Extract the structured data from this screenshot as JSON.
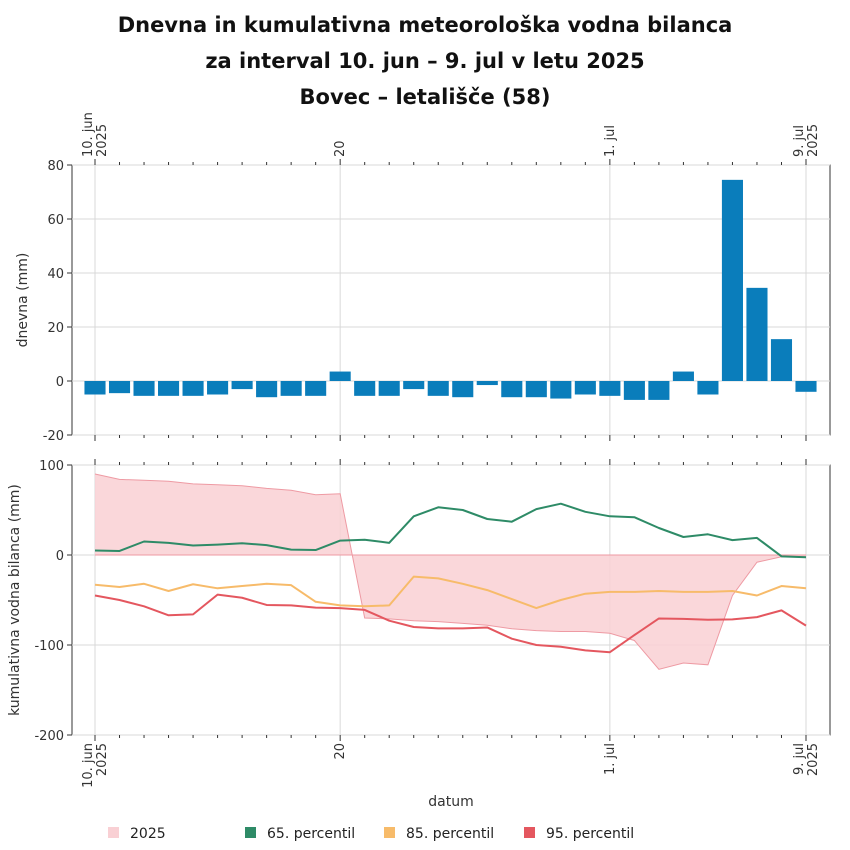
{
  "title_lines": [
    "Dnevna in kumulativna meteorološka vodna bilanca",
    "za interval 10. jun – 9. jul v letu 2025",
    "Bovec – letališče (58)"
  ],
  "colors": {
    "bar": "#0a7dbb",
    "area_fill": "#f9d0d4",
    "area_line": "#ee9aa3",
    "p65": "#2e8b67",
    "p85": "#f7bb6a",
    "p95": "#e4575f",
    "grid": "#d9d9d9"
  },
  "x_ticks": [
    {
      "day": 0,
      "lines": [
        "10. jun",
        "2025"
      ]
    },
    {
      "day": 10,
      "lines": [
        "20"
      ]
    },
    {
      "day": 21,
      "lines": [
        "1. jul"
      ]
    },
    {
      "day": 29,
      "lines": [
        "9. jul",
        "2025"
      ]
    }
  ],
  "xlabel": "datum",
  "legend": [
    "2025",
    "65. percentil",
    "85. percentil",
    "95. percentil"
  ],
  "chart_data": [
    {
      "type": "bar",
      "ylabel": "dnevna (mm)",
      "ylim": [
        -20,
        80
      ],
      "yticks": [
        -20,
        0,
        20,
        40,
        60,
        80
      ],
      "x_dates": [
        "2025-06-10",
        "2025-06-11",
        "2025-06-12",
        "2025-06-13",
        "2025-06-14",
        "2025-06-15",
        "2025-06-16",
        "2025-06-17",
        "2025-06-18",
        "2025-06-19",
        "2025-06-20",
        "2025-06-21",
        "2025-06-22",
        "2025-06-23",
        "2025-06-24",
        "2025-06-25",
        "2025-06-26",
        "2025-06-27",
        "2025-06-28",
        "2025-06-29",
        "2025-06-30",
        "2025-07-01",
        "2025-07-02",
        "2025-07-03",
        "2025-07-04",
        "2025-07-05",
        "2025-07-06",
        "2025-07-07",
        "2025-07-08",
        "2025-07-09"
      ],
      "values": [
        -5,
        -4.5,
        -5.5,
        -5.5,
        -5.5,
        -5,
        -3,
        -6,
        -5.5,
        -5.5,
        3.5,
        -5.5,
        -5.5,
        -3,
        -5.5,
        -6,
        -1.5,
        -6,
        -6,
        -6.5,
        -5,
        -5.5,
        -7,
        -7,
        3.5,
        -5,
        74.5,
        34.5,
        15.5,
        -4
      ]
    },
    {
      "type": "line",
      "ylabel": "kumulativna vodna bilanca (mm)",
      "ylim": [
        -200,
        100
      ],
      "yticks": [
        -200,
        -100,
        0,
        100
      ],
      "x_dates": [
        "2025-06-10",
        "2025-06-11",
        "2025-06-12",
        "2025-06-13",
        "2025-06-14",
        "2025-06-15",
        "2025-06-16",
        "2025-06-17",
        "2025-06-18",
        "2025-06-19",
        "2025-06-20",
        "2025-06-21",
        "2025-06-22",
        "2025-06-23",
        "2025-06-24",
        "2025-06-25",
        "2025-06-26",
        "2025-06-27",
        "2025-06-28",
        "2025-06-29",
        "2025-06-30",
        "2025-07-01",
        "2025-07-02",
        "2025-07-03",
        "2025-07-04",
        "2025-07-05",
        "2025-07-06",
        "2025-07-07",
        "2025-07-08",
        "2025-07-09"
      ],
      "series": [
        {
          "name": "2025",
          "kind": "area",
          "values": [
            90,
            84,
            83,
            82,
            79,
            78,
            77,
            74,
            72,
            67,
            68,
            -70,
            -71,
            -73,
            -74,
            -76,
            -78,
            -82,
            -84,
            -85,
            -85,
            -87,
            -95,
            -127,
            -120,
            -122,
            -45,
            -8,
            -2,
            -2
          ]
        },
        {
          "name": "65. percentil",
          "values": [
            5,
            4.5,
            15,
            13.5,
            10.5,
            11.5,
            13,
            11,
            6,
            5.5,
            16,
            17,
            13.5,
            43,
            53,
            50,
            40,
            37,
            51,
            57,
            48,
            43,
            42,
            30,
            20,
            23,
            16.5,
            19,
            -1.5,
            -2.5
          ]
        },
        {
          "name": "85. percentil",
          "values": [
            -33,
            -35.5,
            -32,
            -40,
            -32.5,
            -37,
            -34.5,
            -32,
            -33.5,
            -52,
            -56,
            -57,
            -56,
            -24,
            -26,
            -32,
            -39,
            -49,
            -59,
            -50,
            -43,
            -41,
            -41,
            -40,
            -41,
            -41,
            -40,
            -45,
            -34.5,
            -37
          ]
        },
        {
          "name": "95. percentil",
          "values": [
            -45,
            -50,
            -57,
            -67,
            -66,
            -44,
            -47.5,
            -55.5,
            -56,
            -58.5,
            -59,
            -61,
            -73,
            -80,
            -81.5,
            -81.5,
            -80.5,
            -93,
            -100,
            -102,
            -106,
            -108,
            -89,
            -70.5,
            -71,
            -72,
            -71.5,
            -69,
            -61.5,
            -78.5
          ]
        }
      ]
    }
  ]
}
